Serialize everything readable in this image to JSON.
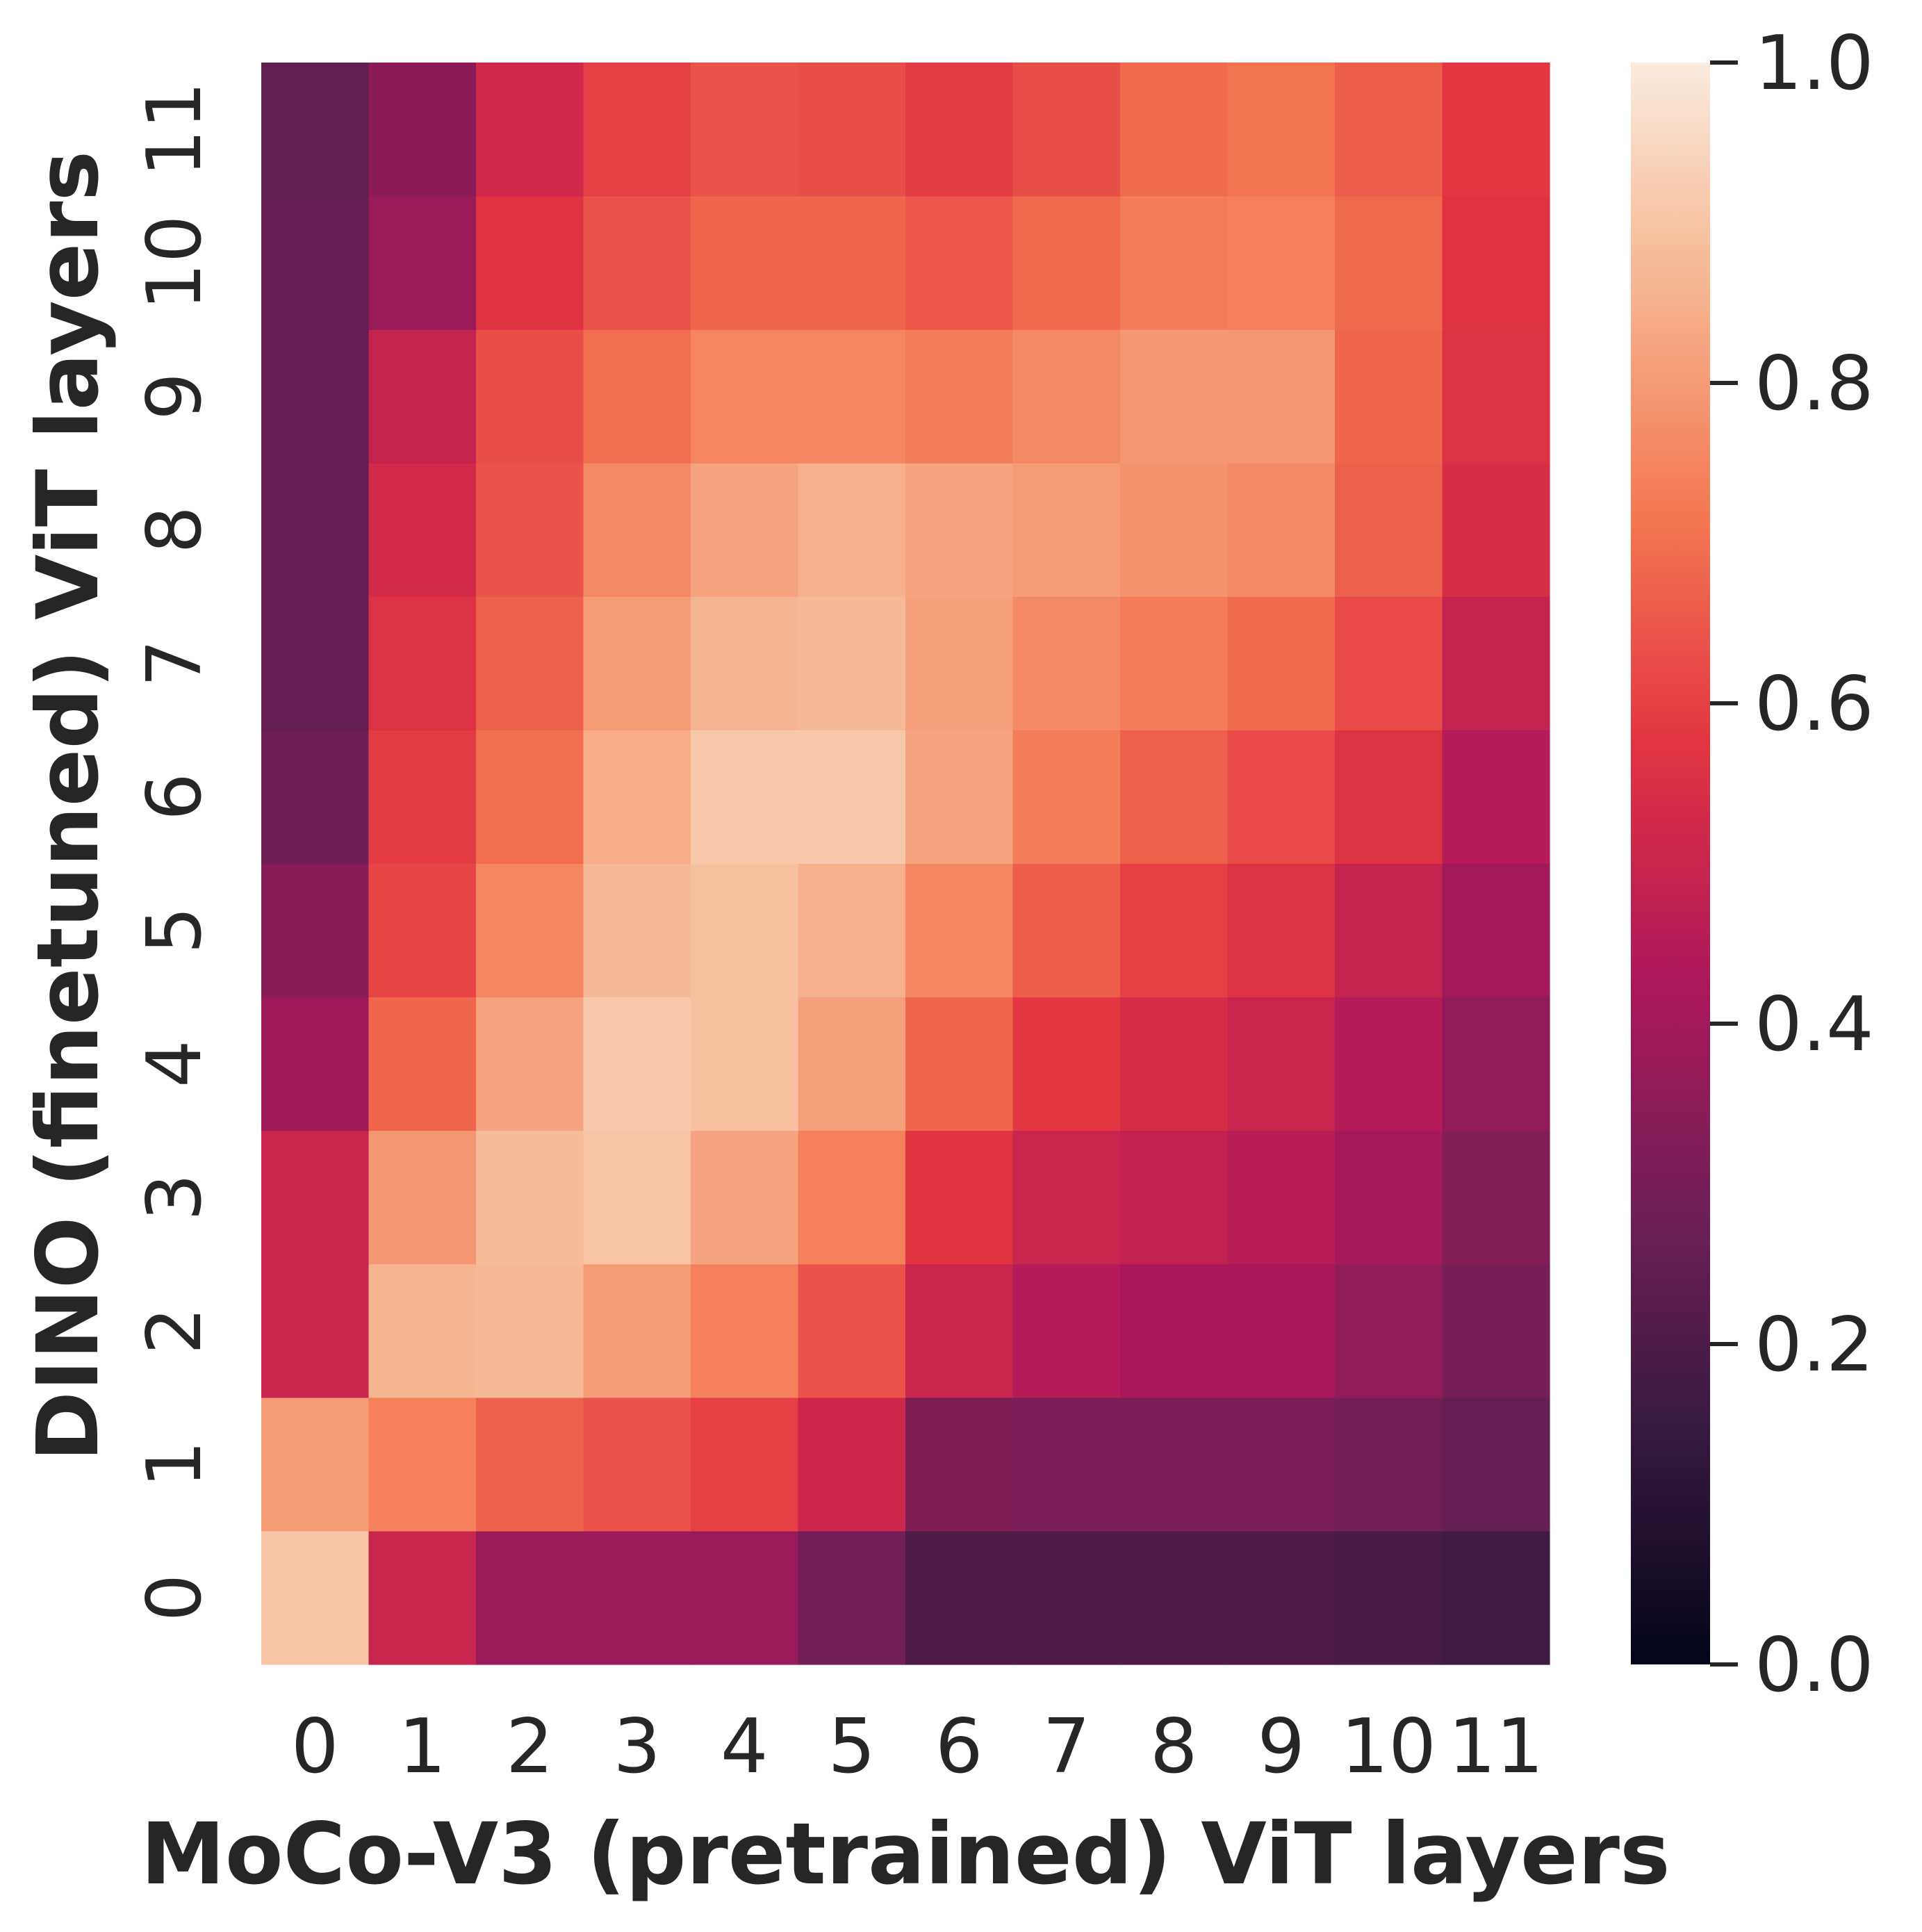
{
  "chart_data": {
    "type": "heatmap",
    "title": "",
    "xlabel": "MoCo-V3 (pretrained) ViT layers",
    "ylabel": "DINO (finetuned) ViT layers",
    "x_categories": [
      "0",
      "1",
      "2",
      "3",
      "4",
      "5",
      "6",
      "7",
      "8",
      "9",
      "10",
      "11"
    ],
    "y_categories": [
      "0",
      "1",
      "2",
      "3",
      "4",
      "5",
      "6",
      "7",
      "8",
      "9",
      "10",
      "11"
    ],
    "y_order": "bottom-to-top",
    "values": [
      [
        0.9,
        0.5,
        0.38,
        0.38,
        0.38,
        0.29,
        0.2,
        0.2,
        0.2,
        0.2,
        0.19,
        0.17
      ],
      [
        0.8,
        0.74,
        0.67,
        0.64,
        0.6,
        0.51,
        0.32,
        0.31,
        0.31,
        0.31,
        0.29,
        0.26
      ],
      [
        0.5,
        0.86,
        0.87,
        0.8,
        0.74,
        0.64,
        0.5,
        0.45,
        0.42,
        0.42,
        0.36,
        0.3
      ],
      [
        0.5,
        0.79,
        0.88,
        0.9,
        0.82,
        0.74,
        0.57,
        0.5,
        0.48,
        0.46,
        0.41,
        0.33
      ],
      [
        0.39,
        0.68,
        0.82,
        0.91,
        0.89,
        0.81,
        0.68,
        0.58,
        0.54,
        0.5,
        0.45,
        0.36
      ],
      [
        0.34,
        0.61,
        0.75,
        0.87,
        0.89,
        0.85,
        0.75,
        0.66,
        0.6,
        0.56,
        0.49,
        0.4
      ],
      [
        0.28,
        0.59,
        0.7,
        0.84,
        0.91,
        0.91,
        0.82,
        0.73,
        0.67,
        0.62,
        0.56,
        0.45
      ],
      [
        0.26,
        0.56,
        0.67,
        0.8,
        0.86,
        0.87,
        0.81,
        0.76,
        0.73,
        0.69,
        0.62,
        0.49
      ],
      [
        0.26,
        0.53,
        0.64,
        0.76,
        0.82,
        0.85,
        0.82,
        0.8,
        0.78,
        0.76,
        0.67,
        0.54
      ],
      [
        0.26,
        0.49,
        0.63,
        0.7,
        0.75,
        0.75,
        0.73,
        0.76,
        0.79,
        0.79,
        0.68,
        0.56
      ],
      [
        0.26,
        0.38,
        0.57,
        0.64,
        0.68,
        0.68,
        0.65,
        0.69,
        0.73,
        0.74,
        0.69,
        0.57
      ],
      [
        0.25,
        0.35,
        0.52,
        0.6,
        0.64,
        0.63,
        0.59,
        0.63,
        0.69,
        0.71,
        0.66,
        0.58
      ]
    ],
    "colorbar": {
      "range": [
        0.0,
        1.0
      ],
      "ticks": [
        "0.0",
        "0.2",
        "0.4",
        "0.6",
        "0.8",
        "1.0"
      ],
      "colormap": "rocket",
      "stops": [
        "#03051a",
        "#35193e",
        "#701f57",
        "#ad1759",
        "#e13342",
        "#f37651",
        "#f6b48f",
        "#faebdd"
      ]
    },
    "grid": false,
    "legend": "colorbar-right"
  }
}
